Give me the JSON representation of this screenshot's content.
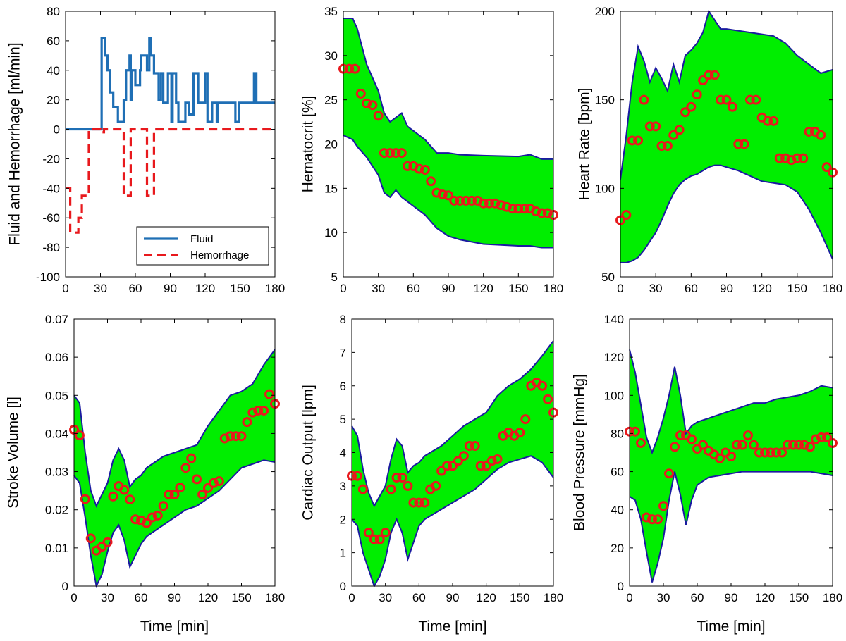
{
  "colors": {
    "band_fill": "#00ee00",
    "band_edge": "#1a1aa0",
    "marker": "#e8191d",
    "fluid": "#1f6fb5",
    "hemorrhage": "#e8191d",
    "axes": "#000000"
  },
  "chart_data": [
    {
      "id": "fluid",
      "type": "line",
      "ylabel": "Fluid and Hemorrhage [ml/min]",
      "xlabel": "",
      "xlim": [
        0,
        180
      ],
      "ylim": [
        -100,
        80
      ],
      "xticks": [
        0,
        30,
        60,
        90,
        120,
        150,
        180
      ],
      "yticks": [
        -100,
        -80,
        -60,
        -40,
        -20,
        0,
        20,
        40,
        60,
        80
      ],
      "legend": {
        "position": "bottom-right",
        "entries": [
          "Fluid",
          "Hemorrhage"
        ]
      },
      "series": [
        {
          "name": "Fluid",
          "style": "solid",
          "x": [
            0,
            31,
            31,
            34,
            34,
            36,
            36,
            38,
            38,
            41,
            41,
            45,
            45,
            50,
            50,
            52,
            52,
            55,
            55,
            56,
            56,
            57,
            57,
            60,
            60,
            64,
            64,
            65,
            65,
            70,
            70,
            72,
            72,
            73,
            73,
            76,
            76,
            80,
            80,
            82,
            82,
            84,
            84,
            88,
            88,
            91,
            91,
            92,
            92,
            95,
            95,
            97,
            97,
            103,
            103,
            106,
            106,
            110,
            110,
            114,
            114,
            120,
            120,
            122,
            122,
            126,
            126,
            130,
            130,
            131,
            131,
            146,
            146,
            149,
            149,
            162,
            162,
            164,
            164,
            180
          ],
          "y": [
            0,
            0,
            62,
            62,
            50,
            50,
            40,
            40,
            25,
            25,
            15,
            15,
            5,
            5,
            20,
            20,
            40,
            40,
            50,
            50,
            20,
            20,
            40,
            40,
            30,
            30,
            40,
            40,
            50,
            50,
            40,
            40,
            62,
            62,
            50,
            50,
            38,
            38,
            20,
            20,
            38,
            38,
            18,
            18,
            38,
            38,
            5,
            5,
            38,
            38,
            18,
            18,
            5,
            5,
            18,
            18,
            10,
            10,
            38,
            38,
            18,
            18,
            38,
            38,
            5,
            5,
            18,
            18,
            5,
            5,
            18,
            18,
            5,
            5,
            18,
            18,
            38,
            38,
            18,
            18
          ]
        },
        {
          "name": "Hemorrhage",
          "style": "dashed",
          "x": [
            0,
            4,
            4,
            11,
            11,
            14,
            14,
            20,
            20,
            30,
            30,
            33,
            33,
            50,
            50,
            52,
            52,
            56,
            56,
            58,
            58,
            70,
            70,
            72,
            72,
            76,
            76,
            78,
            78,
            180
          ],
          "y": [
            -40,
            -40,
            -70,
            -70,
            -60,
            -60,
            -45,
            -45,
            0,
            0,
            -2,
            -2,
            0,
            0,
            -45,
            -45,
            -45,
            -45,
            0,
            0,
            0,
            0,
            -45,
            -45,
            -45,
            -45,
            0,
            0,
            0,
            0
          ]
        }
      ]
    },
    {
      "id": "hct",
      "type": "scatter",
      "ylabel": "Hematocrit [%]",
      "xlabel": "",
      "xlim": [
        0,
        180
      ],
      "ylim": [
        5,
        35
      ],
      "xticks": [
        0,
        30,
        60,
        90,
        120,
        150,
        180
      ],
      "yticks": [
        5,
        10,
        15,
        20,
        25,
        30,
        35
      ],
      "band": {
        "x": [
          0,
          8,
          12,
          20,
          30,
          35,
          40,
          45,
          50,
          55,
          60,
          70,
          80,
          90,
          100,
          120,
          150,
          160,
          170,
          180
        ],
        "upper": [
          34.2,
          34.2,
          33,
          29,
          26,
          23.5,
          22.5,
          23,
          23.5,
          22,
          21.5,
          20.5,
          19,
          19,
          18.8,
          18.7,
          18.6,
          18.8,
          18.3,
          18.3
        ],
        "lower": [
          21,
          20.5,
          19.7,
          18.5,
          16.5,
          14.5,
          14,
          14.8,
          14,
          13.5,
          13,
          12,
          10.5,
          9.6,
          9.2,
          8.7,
          8.5,
          8.5,
          8.3,
          8.3
        ]
      },
      "points": {
        "x": [
          0,
          5,
          10,
          15,
          20,
          25,
          30,
          35,
          40,
          45,
          50,
          55,
          60,
          65,
          70,
          75,
          80,
          85,
          90,
          95,
          100,
          105,
          110,
          115,
          120,
          125,
          130,
          135,
          140,
          145,
          150,
          155,
          160,
          165,
          170,
          175,
          180
        ],
        "y": [
          28.5,
          28.5,
          28.5,
          25.7,
          24.6,
          24.4,
          23.2,
          19,
          19,
          19,
          19,
          17.5,
          17.5,
          17.2,
          17.1,
          15.8,
          14.5,
          14.3,
          14.2,
          13.6,
          13.6,
          13.6,
          13.6,
          13.6,
          13.3,
          13.3,
          13.3,
          13.1,
          12.9,
          12.7,
          12.7,
          12.7,
          12.7,
          12.4,
          12.2,
          12.2,
          12
        ]
      }
    },
    {
      "id": "hr",
      "type": "scatter",
      "ylabel": "Heart Rate [bpm]",
      "xlabel": "",
      "xlim": [
        0,
        180
      ],
      "ylim": [
        50,
        200
      ],
      "xticks": [
        0,
        30,
        60,
        90,
        120,
        150,
        180
      ],
      "yticks": [
        50,
        100,
        150,
        200
      ],
      "band": {
        "x": [
          0,
          5,
          10,
          15,
          20,
          25,
          30,
          35,
          40,
          45,
          50,
          55,
          60,
          65,
          70,
          75,
          80,
          85,
          90,
          100,
          110,
          120,
          130,
          140,
          150,
          160,
          170,
          180
        ],
        "upper": [
          105,
          130,
          160,
          180,
          172,
          160,
          168,
          162,
          155,
          170,
          160,
          175,
          178,
          182,
          188,
          200,
          195,
          190,
          190,
          189,
          188,
          187,
          186,
          182,
          175,
          170,
          165,
          167
        ],
        "lower": [
          58,
          58,
          59,
          61,
          65,
          70,
          75,
          82,
          90,
          97,
          102,
          105,
          107,
          108,
          110,
          112,
          113,
          113,
          112,
          110,
          107,
          104,
          103,
          102,
          98,
          88,
          75,
          60
        ]
      },
      "points": {
        "x": [
          0,
          5,
          10,
          15,
          20,
          25,
          30,
          35,
          40,
          45,
          50,
          55,
          60,
          65,
          70,
          75,
          80,
          85,
          90,
          95,
          100,
          105,
          110,
          115,
          120,
          125,
          130,
          135,
          140,
          145,
          150,
          155,
          160,
          165,
          170,
          175,
          180
        ],
        "y": [
          82,
          85,
          127,
          127,
          150,
          135,
          135,
          124,
          124,
          130,
          133,
          143,
          146,
          153,
          161,
          164,
          164,
          150,
          150,
          146,
          125,
          125,
          150,
          150,
          140,
          138,
          138,
          117,
          117,
          116,
          117,
          117,
          132,
          132,
          130,
          112,
          109
        ]
      }
    },
    {
      "id": "sv",
      "type": "scatter",
      "ylabel": "Stroke Volume [l]",
      "xlabel": "Time [min]",
      "xlim": [
        0,
        180
      ],
      "ylim": [
        0,
        0.07
      ],
      "xticks": [
        0,
        30,
        60,
        90,
        120,
        150,
        180
      ],
      "yticks": [
        0,
        0.01,
        0.02,
        0.03,
        0.04,
        0.05,
        0.06,
        0.07
      ],
      "band": {
        "x": [
          0,
          5,
          10,
          15,
          20,
          25,
          30,
          35,
          40,
          45,
          50,
          55,
          60,
          65,
          70,
          80,
          90,
          100,
          110,
          120,
          130,
          140,
          150,
          160,
          170,
          180
        ],
        "upper": [
          0.05,
          0.048,
          0.035,
          0.025,
          0.021,
          0.024,
          0.027,
          0.033,
          0.036,
          0.033,
          0.026,
          0.028,
          0.029,
          0.031,
          0.032,
          0.034,
          0.035,
          0.036,
          0.037,
          0.042,
          0.046,
          0.05,
          0.051,
          0.053,
          0.058,
          0.062
        ],
        "lower": [
          0.029,
          0.027,
          0.018,
          0.008,
          0.0,
          0.003,
          0.009,
          0.014,
          0.016,
          0.012,
          0.005,
          0.008,
          0.011,
          0.013,
          0.014,
          0.016,
          0.018,
          0.02,
          0.021,
          0.023,
          0.025,
          0.028,
          0.031,
          0.032,
          0.033,
          0.0325
        ]
      },
      "points": {
        "x": [
          0,
          5,
          10,
          15,
          20,
          25,
          30,
          35,
          40,
          45,
          50,
          55,
          60,
          65,
          70,
          75,
          80,
          85,
          90,
          95,
          100,
          105,
          110,
          115,
          120,
          125,
          130,
          135,
          140,
          145,
          150,
          155,
          160,
          165,
          170,
          175,
          180
        ],
        "y": [
          0.041,
          0.0395,
          0.0228,
          0.0125,
          0.0093,
          0.0103,
          0.0115,
          0.0235,
          0.0262,
          0.0252,
          0.0227,
          0.0175,
          0.0172,
          0.0165,
          0.018,
          0.0185,
          0.021,
          0.024,
          0.024,
          0.0258,
          0.031,
          0.0335,
          0.028,
          0.024,
          0.0257,
          0.027,
          0.0275,
          0.0387,
          0.0393,
          0.0393,
          0.0393,
          0.043,
          0.0455,
          0.046,
          0.046,
          0.0503,
          0.0478
        ]
      }
    },
    {
      "id": "co",
      "type": "scatter",
      "ylabel": "Cardiac Output [lpm]",
      "xlabel": "Time [min]",
      "xlim": [
        0,
        180
      ],
      "ylim": [
        0,
        8
      ],
      "xticks": [
        0,
        30,
        60,
        90,
        120,
        150,
        180
      ],
      "yticks": [
        0,
        1,
        2,
        3,
        4,
        5,
        6,
        7,
        8
      ],
      "band": {
        "x": [
          0,
          5,
          10,
          15,
          20,
          25,
          30,
          35,
          40,
          45,
          50,
          55,
          60,
          65,
          70,
          80,
          90,
          100,
          110,
          120,
          130,
          140,
          150,
          160,
          170,
          180
        ],
        "upper": [
          4.8,
          4.5,
          3.5,
          2.8,
          2.4,
          2.7,
          3.0,
          3.8,
          4.4,
          4.2,
          3.4,
          3.6,
          3.7,
          3.9,
          4.0,
          4.2,
          4.5,
          4.8,
          5.0,
          5.2,
          5.7,
          6.0,
          6.2,
          6.5,
          6.9,
          7.35
        ],
        "lower": [
          2.0,
          1.8,
          1.0,
          0.5,
          0.0,
          0.3,
          0.8,
          1.6,
          2.0,
          1.6,
          0.8,
          1.3,
          1.8,
          2.0,
          2.1,
          2.3,
          2.5,
          2.7,
          2.9,
          3.2,
          3.5,
          3.7,
          3.8,
          3.9,
          3.7,
          3.25
        ]
      },
      "points": {
        "x": [
          0,
          5,
          10,
          15,
          20,
          25,
          30,
          35,
          40,
          45,
          50,
          55,
          60,
          65,
          70,
          75,
          80,
          85,
          90,
          95,
          100,
          105,
          110,
          115,
          120,
          125,
          130,
          135,
          140,
          145,
          150,
          155,
          160,
          165,
          170,
          175,
          180
        ],
        "y": [
          3.3,
          3.3,
          2.9,
          1.6,
          1.4,
          1.4,
          1.6,
          2.9,
          3.25,
          3.25,
          3.0,
          2.5,
          2.5,
          2.5,
          2.9,
          3.0,
          3.45,
          3.6,
          3.6,
          3.75,
          3.9,
          4.2,
          4.2,
          3.6,
          3.6,
          3.75,
          3.8,
          4.5,
          4.6,
          4.5,
          4.6,
          5.0,
          6.0,
          6.1,
          6.0,
          5.6,
          5.2
        ]
      }
    },
    {
      "id": "bp",
      "type": "scatter",
      "ylabel": "Blood Pressure [mmHg]",
      "xlabel": "Time [min]",
      "xlim": [
        0,
        180
      ],
      "ylim": [
        0,
        140
      ],
      "xticks": [
        0,
        30,
        60,
        90,
        120,
        150,
        180
      ],
      "yticks": [
        0,
        20,
        40,
        60,
        80,
        100,
        120,
        140
      ],
      "band": {
        "x": [
          0,
          5,
          10,
          15,
          20,
          25,
          30,
          35,
          40,
          45,
          50,
          55,
          60,
          65,
          70,
          80,
          90,
          100,
          110,
          120,
          130,
          140,
          150,
          160,
          170,
          180
        ],
        "upper": [
          124,
          112,
          95,
          78,
          70,
          78,
          88,
          100,
          115,
          100,
          80,
          84,
          86,
          87,
          88,
          90,
          92,
          94,
          96,
          96,
          98,
          99,
          100,
          102,
          105,
          104
        ],
        "lower": [
          47,
          45,
          35,
          18,
          2,
          12,
          25,
          45,
          60,
          48,
          32,
          45,
          53,
          55,
          57,
          58,
          59,
          60,
          60,
          60,
          60,
          60,
          60,
          60,
          59,
          58
        ]
      },
      "points": {
        "x": [
          0,
          5,
          10,
          15,
          20,
          25,
          30,
          35,
          40,
          45,
          50,
          55,
          60,
          65,
          70,
          75,
          80,
          85,
          90,
          95,
          100,
          105,
          110,
          115,
          120,
          125,
          130,
          135,
          140,
          145,
          150,
          155,
          160,
          165,
          170,
          175,
          180
        ],
        "y": [
          81,
          81,
          75,
          36,
          35,
          35,
          42,
          59,
          73,
          79,
          79,
          77,
          72,
          74,
          71,
          69,
          67,
          70,
          68,
          74,
          74,
          79,
          74,
          70,
          70,
          70,
          70,
          70,
          74,
          74,
          74,
          74,
          73,
          77,
          78,
          78,
          75
        ]
      }
    }
  ]
}
